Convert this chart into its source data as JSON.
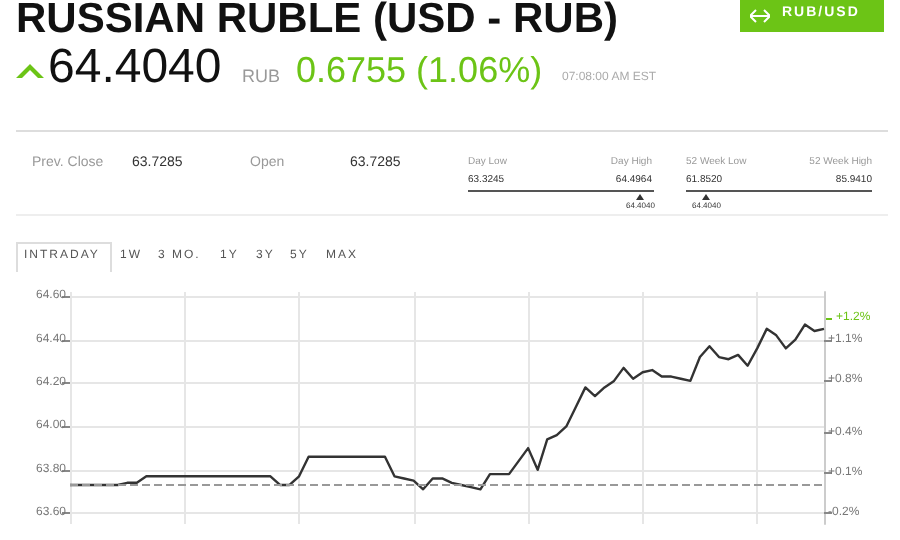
{
  "chart_data": {
    "type": "line",
    "title": "RUSSIAN RUBLE (USD - RUB)",
    "annotations": [
      "RUB/USD",
      "64.4040",
      "RUB",
      "0.6755 (1.06%)",
      "07:08:00 AM EST",
      "Prev. Close",
      "63.7285",
      "Open",
      "63.7285",
      "Day Low",
      "63.3245",
      "Day High",
      "64.4964",
      "52 Week Low",
      "61.8520",
      "52 Week High",
      "85.9410",
      "64.4040",
      "64.4040",
      "INTRADAY",
      "1W",
      "3 MO.",
      "1Y",
      "3Y",
      "5Y",
      "MAX",
      "+1.2%"
    ],
    "categories": [
      null,
      null,
      null,
      null,
      null,
      null,
      null,
      null,
      null,
      null,
      null,
      null,
      null,
      null,
      null,
      null,
      null,
      null,
      null,
      null,
      null,
      null,
      null,
      null,
      null,
      null,
      null,
      null,
      null,
      null,
      null,
      null,
      null,
      null,
      null,
      null,
      null,
      null,
      null,
      null,
      null,
      null,
      null,
      null,
      null,
      null,
      null,
      null,
      null,
      null,
      null,
      null,
      null,
      null,
      null,
      null,
      null,
      null,
      null,
      null,
      null,
      null,
      null,
      null,
      null,
      null,
      null,
      null,
      null,
      null,
      null,
      null,
      null,
      null,
      null,
      null,
      null,
      null,
      null,
      null
    ],
    "series": [
      {
        "color": "#333333",
        "values": [
          63.73,
          63.73,
          63.73,
          63.73,
          63.73,
          63.73,
          63.74,
          63.74,
          63.77,
          63.77,
          63.77,
          63.77,
          63.77,
          63.77,
          63.77,
          63.77,
          63.77,
          63.77,
          63.77,
          63.77,
          63.77,
          63.77,
          63.73,
          63.73,
          63.77,
          63.86,
          63.86,
          63.86,
          63.86,
          63.86,
          63.86,
          63.86,
          63.86,
          63.86,
          63.77,
          63.76,
          63.75,
          63.71,
          63.76,
          63.76,
          63.74,
          63.73,
          63.72,
          63.71,
          63.78,
          null,
          63.78,
          null,
          63.9,
          63.8,
          63.94,
          63.96,
          64.0,
          64.09,
          64.18,
          64.14,
          64.18,
          64.21,
          64.27,
          64.22,
          64.25,
          64.26,
          64.23,
          64.23,
          64.22,
          64.21,
          64.32,
          64.37,
          64.32,
          64.31,
          64.33,
          64.28,
          64.36,
          64.45,
          64.42,
          64.36,
          64.4,
          64.47,
          64.44,
          64.45
        ]
      }
    ],
    "ylim": [
      63.55,
      64.62
    ],
    "yticks": [
      {
        "value": 63.6,
        "label": "63.60"
      },
      {
        "value": 63.8,
        "label": "63.80"
      },
      {
        "value": 64.0,
        "label": "64.00"
      },
      {
        "value": 64.2,
        "label": "64.20"
      },
      {
        "value": 64.4,
        "label": "64.40"
      },
      {
        "value": 64.6,
        "label": "64.60"
      }
    ],
    "y2lim": [
      -0.28,
      1.46
    ],
    "y2ticks": [
      {
        "value": -0.2,
        "label": "-0.2%"
      },
      {
        "value": 0.1,
        "label": "+0.1%"
      },
      {
        "value": 0.4,
        "label": "+0.4%"
      },
      {
        "value": 0.8,
        "label": "+0.8%"
      },
      {
        "value": 1.1,
        "label": "+1.1%"
      }
    ],
    "ref_lines": [
      {
        "axis": "y",
        "value": 63.7285,
        "color": "#999999",
        "line_style": "dashed"
      }
    ],
    "grid": true,
    "marker": "none"
  }
}
